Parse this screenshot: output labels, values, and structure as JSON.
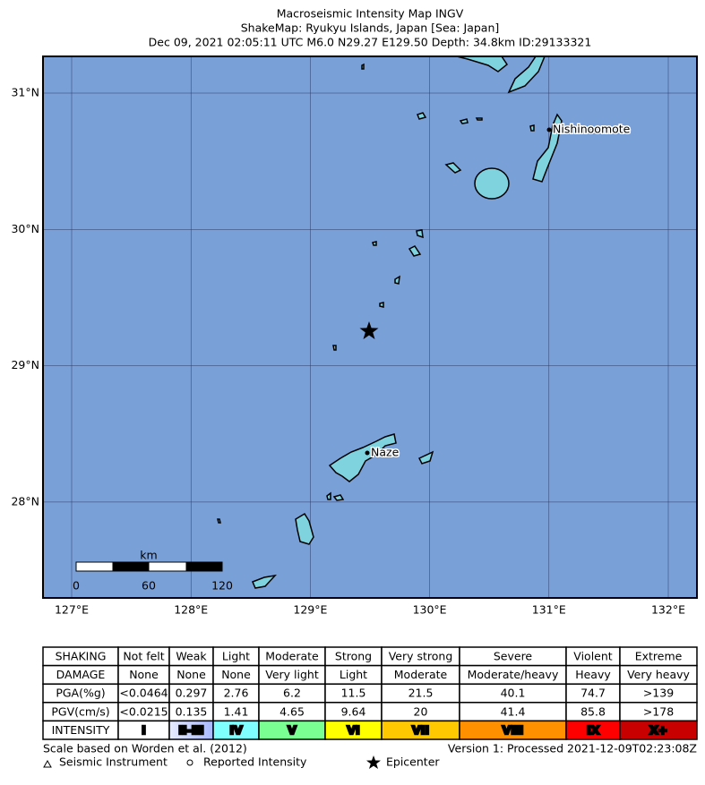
{
  "header": {
    "title": "Macroseismic Intensity Map INGV",
    "subtitle": "ShakeMap: Ryukyu Islands, Japan [Sea: Japan]",
    "event": "Dec 09, 2021 02:05:11 UTC M6.0 N29.27 E129.50 Depth: 34.8km ID:29133321"
  },
  "map": {
    "lat_labels": [
      "31°N",
      "30°N",
      "29°N",
      "28°N"
    ],
    "lon_labels": [
      "127°E",
      "128°E",
      "129°E",
      "130°E",
      "131°E",
      "132°E"
    ],
    "places": [
      "Nishinoomote",
      "Naze"
    ],
    "scale_bar": {
      "unit": "km",
      "ticks": [
        "0",
        "60",
        "120"
      ]
    }
  },
  "legend_table": {
    "rows": [
      [
        "SHAKING",
        "Not felt",
        "Weak",
        "Light",
        "Moderate",
        "Strong",
        "Very strong",
        "Severe",
        "Violent",
        "Extreme"
      ],
      [
        "DAMAGE",
        "None",
        "None",
        "None",
        "Very light",
        "Light",
        "Moderate",
        "Moderate/heavy",
        "Heavy",
        "Very heavy"
      ],
      [
        "PGA(%g)",
        "<0.0464",
        "0.297",
        "2.76",
        "6.2",
        "11.5",
        "21.5",
        "40.1",
        "74.7",
        ">139"
      ],
      [
        "PGV(cm/s)",
        "<0.0215",
        "0.135",
        "1.41",
        "4.65",
        "9.64",
        "20",
        "41.4",
        "85.8",
        ">178"
      ],
      [
        "INTENSITY",
        "I",
        "II-III",
        "IV",
        "V",
        "VI",
        "VII",
        "VIII",
        "IX",
        "X+"
      ]
    ]
  },
  "footer": {
    "scale_note": "Scale based on Worden et al. (2012)",
    "version": "Version 1: Processed 2021-12-09T02:23:08Z",
    "symbols": [
      "Seismic Instrument",
      "Reported Intensity",
      "Epicenter"
    ]
  }
}
